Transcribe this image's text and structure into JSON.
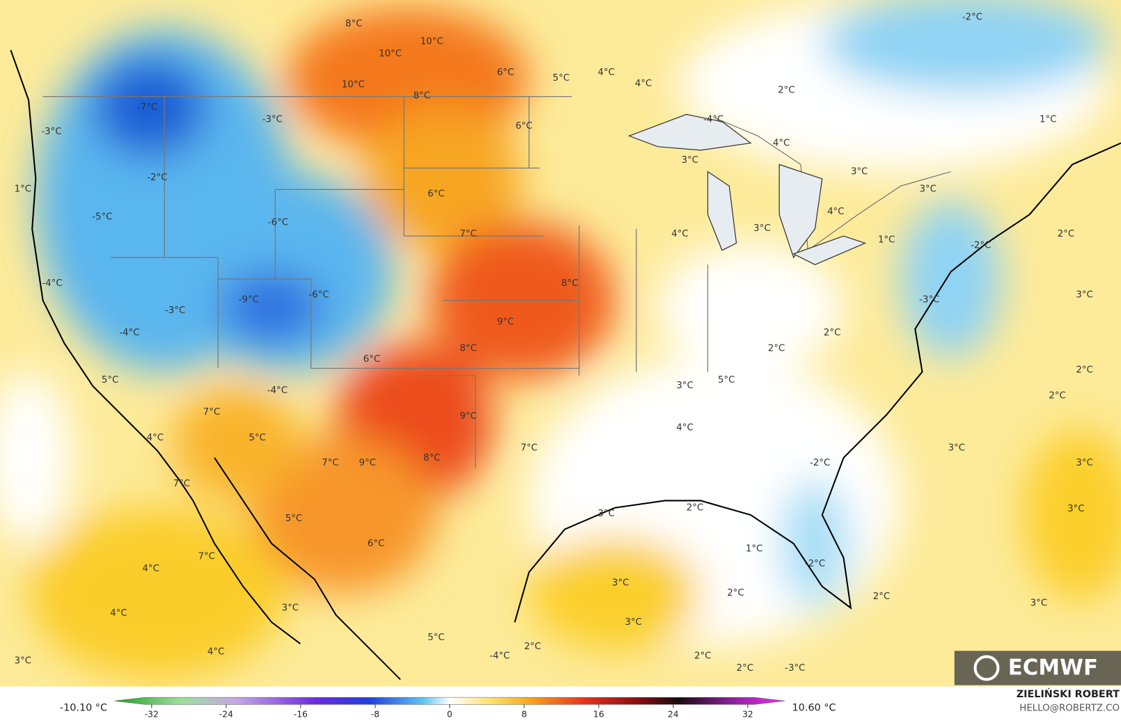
{
  "map_labels": [
    "8°C",
    "10°C",
    "10°C",
    "6°C",
    "5°C",
    "4°C",
    "4°C",
    "-2°C",
    "10°C",
    "8°C",
    "2°C",
    "-7°C",
    "-3°C",
    "-3°C",
    "6°C",
    "-4°C",
    "1°C",
    "4°C",
    "3°C",
    "3°C",
    "-2°C",
    "1°C",
    "6°C",
    "3°C",
    "4°C",
    "-5°C",
    "-6°C",
    "7°C",
    "4°C",
    "3°C",
    "1°C",
    "2°C",
    "-2°C",
    "-4°C",
    "8°C",
    "-9°C",
    "-6°C",
    "-3°C",
    "3°C",
    "-3°C",
    "9°C",
    "-4°C",
    "2°C",
    "8°C",
    "2°C",
    "6°C",
    "2°C",
    "5°C",
    "3°C",
    "5°C",
    "-4°C",
    "2°C",
    "7°C",
    "9°C",
    "4°C",
    "5°C",
    "4°C",
    "7°C",
    "3°C",
    "8°C",
    "7°C",
    "9°C",
    "-2°C",
    "3°C",
    "7°C",
    "3°C",
    "2°C",
    "5°C",
    "3°C",
    "6°C",
    "1°C",
    "7°C",
    "-2°C",
    "4°C",
    "3°C",
    "2°C",
    "2°C",
    "4°C",
    "3°C",
    "3°C",
    "3°C",
    "5°C",
    "2°C",
    "4°C",
    "2°C",
    "3°C",
    "-4°C",
    "2°C",
    "-3°C"
  ],
  "colorbar": {
    "min_label": "-10.10 °C",
    "max_label": "10.60 °C",
    "range": [
      -36,
      36
    ],
    "ticks": [
      -32,
      -24,
      -16,
      -8,
      0,
      8,
      16,
      24,
      32
    ]
  },
  "logo": "ECMWF",
  "credit": {
    "author": "ZIELIŃSKI ROBERT",
    "contact": "HELLO@ROBERTZ.CO"
  }
}
